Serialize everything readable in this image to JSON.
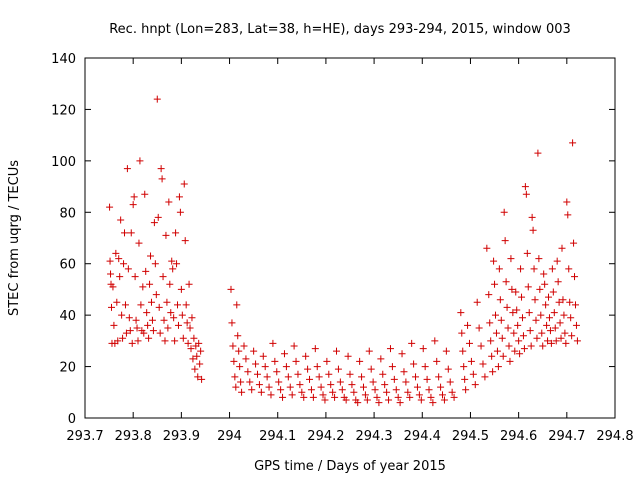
{
  "chart_data": {
    "type": "scatter",
    "title": "Rec. hnpt (Lon=283, Lat=38, h=HE), days 293-294, 2015, window 003",
    "xlabel": "GPS time / Days of year 2015",
    "ylabel": "STEC from uqrg / TECUs",
    "xlim": [
      293.7,
      294.8
    ],
    "ylim": [
      0,
      140
    ],
    "xticks": [
      "293.7",
      "293.8",
      "293.9",
      "294",
      "294.1",
      "294.2",
      "294.3",
      "294.4",
      "294.5",
      "294.6",
      "294.7",
      "294.8"
    ],
    "yticks": [
      "0",
      "20",
      "40",
      "60",
      "80",
      "100",
      "120",
      "140"
    ],
    "grid": false,
    "marker": "plus",
    "color": "#d00000",
    "points": [
      [
        293.751,
        82
      ],
      [
        293.752,
        61
      ],
      [
        293.753,
        56
      ],
      [
        293.754,
        52
      ],
      [
        293.755,
        43
      ],
      [
        293.756,
        29
      ],
      [
        293.758,
        51
      ],
      [
        293.76,
        36
      ],
      [
        293.762,
        29
      ],
      [
        293.764,
        64
      ],
      [
        293.766,
        45
      ],
      [
        293.768,
        30
      ],
      [
        293.77,
        62
      ],
      [
        293.772,
        55
      ],
      [
        293.774,
        77
      ],
      [
        293.776,
        40
      ],
      [
        293.778,
        31
      ],
      [
        293.78,
        60
      ],
      [
        293.782,
        72
      ],
      [
        293.784,
        44
      ],
      [
        293.786,
        33
      ],
      [
        293.788,
        97
      ],
      [
        293.79,
        58
      ],
      [
        293.792,
        39
      ],
      [
        293.794,
        34
      ],
      [
        293.796,
        72
      ],
      [
        293.798,
        29
      ],
      [
        293.8,
        83
      ],
      [
        293.802,
        86
      ],
      [
        293.804,
        55
      ],
      [
        293.806,
        38
      ],
      [
        293.808,
        35
      ],
      [
        293.81,
        30
      ],
      [
        293.812,
        68
      ],
      [
        293.814,
        100
      ],
      [
        293.816,
        44
      ],
      [
        293.818,
        34
      ],
      [
        293.82,
        51
      ],
      [
        293.822,
        33
      ],
      [
        293.824,
        87
      ],
      [
        293.826,
        57
      ],
      [
        293.828,
        41
      ],
      [
        293.83,
        36
      ],
      [
        293.832,
        31
      ],
      [
        293.834,
        52
      ],
      [
        293.836,
        63
      ],
      [
        293.838,
        45
      ],
      [
        293.84,
        38
      ],
      [
        293.842,
        34
      ],
      [
        293.844,
        76
      ],
      [
        293.846,
        60
      ],
      [
        293.848,
        48
      ],
      [
        293.85,
        124
      ],
      [
        293.852,
        78
      ],
      [
        293.854,
        43
      ],
      [
        293.856,
        33
      ],
      [
        293.858,
        97
      ],
      [
        293.86,
        93
      ],
      [
        293.862,
        55
      ],
      [
        293.864,
        38
      ],
      [
        293.866,
        30
      ],
      [
        293.868,
        71
      ],
      [
        293.87,
        45
      ],
      [
        293.872,
        35
      ],
      [
        293.874,
        84
      ],
      [
        293.876,
        52
      ],
      [
        293.878,
        41
      ],
      [
        293.88,
        61
      ],
      [
        293.882,
        58
      ],
      [
        293.884,
        39
      ],
      [
        293.886,
        30
      ],
      [
        293.888,
        72
      ],
      [
        293.89,
        60
      ],
      [
        293.892,
        44
      ],
      [
        293.894,
        36
      ],
      [
        293.896,
        86
      ],
      [
        293.898,
        80
      ],
      [
        293.9,
        50
      ],
      [
        293.902,
        40
      ],
      [
        293.904,
        31
      ],
      [
        293.906,
        91
      ],
      [
        293.908,
        69
      ],
      [
        293.91,
        44
      ],
      [
        293.912,
        37
      ],
      [
        293.914,
        29
      ],
      [
        293.916,
        52
      ],
      [
        293.918,
        35
      ],
      [
        293.92,
        27
      ],
      [
        293.922,
        39
      ],
      [
        293.924,
        23
      ],
      [
        293.926,
        31
      ],
      [
        293.928,
        19
      ],
      [
        293.93,
        28
      ],
      [
        293.932,
        24
      ],
      [
        293.934,
        16
      ],
      [
        293.936,
        29
      ],
      [
        293.938,
        21
      ],
      [
        293.94,
        26
      ],
      [
        293.942,
        15
      ],
      [
        294.003,
        50
      ],
      [
        294.005,
        37
      ],
      [
        294.007,
        28
      ],
      [
        294.009,
        22
      ],
      [
        294.011,
        16
      ],
      [
        294.013,
        12
      ],
      [
        294.015,
        44
      ],
      [
        294.017,
        32
      ],
      [
        294.019,
        26
      ],
      [
        294.021,
        20
      ],
      [
        294.023,
        14
      ],
      [
        294.025,
        10
      ],
      [
        294.03,
        28
      ],
      [
        294.034,
        23
      ],
      [
        294.038,
        18
      ],
      [
        294.042,
        14
      ],
      [
        294.046,
        11
      ],
      [
        294.05,
        26
      ],
      [
        294.054,
        21
      ],
      [
        294.058,
        17
      ],
      [
        294.062,
        13
      ],
      [
        294.066,
        10
      ],
      [
        294.07,
        24
      ],
      [
        294.074,
        20
      ],
      [
        294.078,
        16
      ],
      [
        294.082,
        12
      ],
      [
        294.086,
        9
      ],
      [
        294.09,
        29
      ],
      [
        294.094,
        22
      ],
      [
        294.098,
        18
      ],
      [
        294.102,
        14
      ],
      [
        294.106,
        11
      ],
      [
        294.11,
        8
      ],
      [
        294.114,
        25
      ],
      [
        294.118,
        20
      ],
      [
        294.122,
        16
      ],
      [
        294.126,
        12
      ],
      [
        294.13,
        9
      ],
      [
        294.134,
        28
      ],
      [
        294.138,
        22
      ],
      [
        294.142,
        17
      ],
      [
        294.146,
        13
      ],
      [
        294.15,
        10
      ],
      [
        294.154,
        8
      ],
      [
        294.158,
        24
      ],
      [
        294.162,
        19
      ],
      [
        294.166,
        15
      ],
      [
        294.17,
        11
      ],
      [
        294.174,
        8
      ],
      [
        294.178,
        27
      ],
      [
        294.182,
        20
      ],
      [
        294.186,
        16
      ],
      [
        294.19,
        12
      ],
      [
        294.194,
        9
      ],
      [
        294.198,
        7
      ],
      [
        294.202,
        22
      ],
      [
        294.206,
        17
      ],
      [
        294.21,
        13
      ],
      [
        294.214,
        10
      ],
      [
        294.218,
        8
      ],
      [
        294.222,
        26
      ],
      [
        294.226,
        19
      ],
      [
        294.23,
        14
      ],
      [
        294.234,
        11
      ],
      [
        294.238,
        8
      ],
      [
        294.242,
        7
      ],
      [
        294.246,
        24
      ],
      [
        294.25,
        17
      ],
      [
        294.254,
        13
      ],
      [
        294.258,
        10
      ],
      [
        294.262,
        7
      ],
      [
        294.266,
        6
      ],
      [
        294.27,
        22
      ],
      [
        294.274,
        16
      ],
      [
        294.278,
        12
      ],
      [
        294.282,
        9
      ],
      [
        294.286,
        7
      ],
      [
        294.29,
        26
      ],
      [
        294.294,
        19
      ],
      [
        294.298,
        14
      ],
      [
        294.302,
        11
      ],
      [
        294.306,
        8
      ],
      [
        294.31,
        6
      ],
      [
        294.314,
        23
      ],
      [
        294.318,
        17
      ],
      [
        294.322,
        13
      ],
      [
        294.326,
        10
      ],
      [
        294.33,
        7
      ],
      [
        294.334,
        27
      ],
      [
        294.338,
        20
      ],
      [
        294.342,
        15
      ],
      [
        294.346,
        11
      ],
      [
        294.35,
        8
      ],
      [
        294.354,
        6
      ],
      [
        294.358,
        25
      ],
      [
        294.362,
        18
      ],
      [
        294.366,
        14
      ],
      [
        294.37,
        10
      ],
      [
        294.374,
        8
      ],
      [
        294.378,
        29
      ],
      [
        294.382,
        21
      ],
      [
        294.386,
        16
      ],
      [
        294.39,
        12
      ],
      [
        294.394,
        9
      ],
      [
        294.398,
        7
      ],
      [
        294.402,
        27
      ],
      [
        294.406,
        20
      ],
      [
        294.41,
        15
      ],
      [
        294.414,
        11
      ],
      [
        294.418,
        8
      ],
      [
        294.422,
        6
      ],
      [
        294.426,
        30
      ],
      [
        294.43,
        22
      ],
      [
        294.434,
        16
      ],
      [
        294.438,
        12
      ],
      [
        294.442,
        9
      ],
      [
        294.446,
        7
      ],
      [
        294.45,
        26
      ],
      [
        294.454,
        19
      ],
      [
        294.458,
        14
      ],
      [
        294.462,
        10
      ],
      [
        294.466,
        8
      ],
      [
        294.48,
        41
      ],
      [
        294.482,
        33
      ],
      [
        294.484,
        26
      ],
      [
        294.486,
        20
      ],
      [
        294.488,
        15
      ],
      [
        294.49,
        11
      ],
      [
        294.494,
        36
      ],
      [
        294.498,
        29
      ],
      [
        294.502,
        22
      ],
      [
        294.506,
        17
      ],
      [
        294.51,
        13
      ],
      [
        294.514,
        45
      ],
      [
        294.518,
        35
      ],
      [
        294.522,
        28
      ],
      [
        294.526,
        21
      ],
      [
        294.53,
        16
      ],
      [
        294.534,
        66
      ],
      [
        294.538,
        48
      ],
      [
        294.54,
        37
      ],
      [
        294.542,
        30
      ],
      [
        294.544,
        24
      ],
      [
        294.546,
        18
      ],
      [
        294.548,
        61
      ],
      [
        294.55,
        52
      ],
      [
        294.552,
        40
      ],
      [
        294.554,
        33
      ],
      [
        294.556,
        26
      ],
      [
        294.558,
        20
      ],
      [
        294.56,
        58
      ],
      [
        294.562,
        46
      ],
      [
        294.564,
        38
      ],
      [
        294.566,
        31
      ],
      [
        294.568,
        24
      ],
      [
        294.57,
        80
      ],
      [
        294.572,
        69
      ],
      [
        294.574,
        53
      ],
      [
        294.576,
        43
      ],
      [
        294.578,
        35
      ],
      [
        294.58,
        28
      ],
      [
        294.582,
        22
      ],
      [
        294.584,
        62
      ],
      [
        294.586,
        50
      ],
      [
        294.588,
        41
      ],
      [
        294.59,
        33
      ],
      [
        294.592,
        26
      ],
      [
        294.594,
        49
      ],
      [
        294.596,
        42
      ],
      [
        294.598,
        36
      ],
      [
        294.6,
        30
      ],
      [
        294.602,
        25
      ],
      [
        294.604,
        58
      ],
      [
        294.606,
        47
      ],
      [
        294.608,
        39
      ],
      [
        294.61,
        32
      ],
      [
        294.612,
        27
      ],
      [
        294.614,
        90
      ],
      [
        294.616,
        87
      ],
      [
        294.618,
        64
      ],
      [
        294.62,
        51
      ],
      [
        294.622,
        41
      ],
      [
        294.624,
        34
      ],
      [
        294.626,
        28
      ],
      [
        294.628,
        78
      ],
      [
        294.63,
        73
      ],
      [
        294.632,
        58
      ],
      [
        294.634,
        46
      ],
      [
        294.636,
        38
      ],
      [
        294.638,
        31
      ],
      [
        294.64,
        103
      ],
      [
        294.642,
        62
      ],
      [
        294.644,
        50
      ],
      [
        294.646,
        40
      ],
      [
        294.648,
        33
      ],
      [
        294.65,
        28
      ],
      [
        294.652,
        56
      ],
      [
        294.654,
        52
      ],
      [
        294.656,
        44
      ],
      [
        294.658,
        36
      ],
      [
        294.66,
        30
      ],
      [
        294.662,
        47
      ],
      [
        294.664,
        39
      ],
      [
        294.666,
        34
      ],
      [
        294.668,
        29
      ],
      [
        294.67,
        58
      ],
      [
        294.672,
        49
      ],
      [
        294.674,
        41
      ],
      [
        294.676,
        35
      ],
      [
        294.678,
        30
      ],
      [
        294.68,
        61
      ],
      [
        294.682,
        53
      ],
      [
        294.684,
        45
      ],
      [
        294.686,
        37
      ],
      [
        294.688,
        31
      ],
      [
        294.69,
        66
      ],
      [
        294.692,
        46
      ],
      [
        294.694,
        40
      ],
      [
        294.696,
        33
      ],
      [
        294.698,
        29
      ],
      [
        294.7,
        84
      ],
      [
        294.702,
        79
      ],
      [
        294.704,
        58
      ],
      [
        294.706,
        45
      ],
      [
        294.708,
        39
      ],
      [
        294.71,
        32
      ],
      [
        294.712,
        107
      ],
      [
        294.714,
        68
      ],
      [
        294.716,
        55
      ],
      [
        294.718,
        44
      ],
      [
        294.72,
        36
      ],
      [
        294.722,
        30
      ]
    ]
  }
}
